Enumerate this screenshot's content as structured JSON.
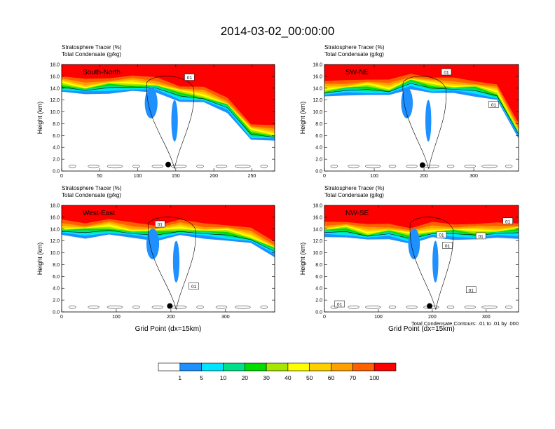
{
  "title": "2014-03-02_00:00:00",
  "contour_note": "Total Condensate Contours: .01 to .01 by .000",
  "colorbar": {
    "colors": [
      "#ffffff",
      "#1e90ff",
      "#00e5ff",
      "#00e08a",
      "#00dd00",
      "#a6e600",
      "#ffff00",
      "#ffd000",
      "#ffa000",
      "#ff6000",
      "#ff0000"
    ],
    "labels": [
      "1",
      "5",
      "10",
      "20",
      "30",
      "40",
      "50",
      "60",
      "70",
      "100"
    ]
  },
  "chart_data": [
    {
      "type": "heatmap",
      "panel_label": "South-North",
      "header": [
        "Stratosphere Tracer   (%)",
        "Total Condensate   (g/kg)"
      ],
      "ylabel": "Height (km)",
      "xlabel": "",
      "xlim": [
        0,
        280
      ],
      "ylim": [
        0,
        18
      ],
      "xticks": [
        0,
        50,
        100,
        150,
        200,
        250
      ],
      "yticks": [
        "0.0",
        "2.0",
        "4.0",
        "6.0",
        "8.0",
        "10.0",
        "12.0",
        "14.0",
        "16.0",
        "18.0"
      ],
      "tropopause_km": [
        16.0,
        15.4,
        15.9,
        16.0,
        15.8,
        14.5,
        14.0,
        12.5,
        8.0,
        7.5
      ],
      "contour_labels": [
        {
          "text": "01",
          "x": 168,
          "y": 15.8
        }
      ],
      "marker": {
        "x": 140,
        "y": 1.1
      }
    },
    {
      "type": "heatmap",
      "panel_label": "SW-NE",
      "header": [
        "Stratosphere Tracer   (%)",
        "Total Condensate   (g/kg)"
      ],
      "ylabel": "Height (km)",
      "xlabel": "",
      "xlim": [
        0,
        390
      ],
      "ylim": [
        0,
        18
      ],
      "xticks": [
        0,
        100,
        200,
        300
      ],
      "yticks": [
        "0.0",
        "2.0",
        "4.0",
        "6.0",
        "8.0",
        "10.0",
        "12.0",
        "14.0",
        "16.0",
        "18.0"
      ],
      "tropopause_km": [
        15.0,
        15.4,
        15.6,
        15.2,
        16.6,
        15.8,
        15.6,
        15.4,
        14.5,
        8.0
      ],
      "contour_labels": [
        {
          "text": "01",
          "x": 245,
          "y": 16.7
        },
        {
          "text": "01",
          "x": 340,
          "y": 11.2
        }
      ],
      "marker": {
        "x": 197,
        "y": 1.0
      }
    },
    {
      "type": "heatmap",
      "panel_label": "West-East",
      "header": [
        "Stratosphere Tracer   (%)",
        "Total Condensate   (g/kg)"
      ],
      "ylabel": "Height (km)",
      "xlabel": "Grid Point (dx=15km)",
      "xlim": [
        0,
        390
      ],
      "ylim": [
        0,
        18
      ],
      "xticks": [
        0,
        100,
        200,
        300
      ],
      "yticks": [
        "0.0",
        "2.0",
        "4.0",
        "6.0",
        "8.0",
        "10.0",
        "12.0",
        "14.0",
        "16.0",
        "18.0"
      ],
      "tropopause_km": [
        15.4,
        15.2,
        15.6,
        15.0,
        14.8,
        15.4,
        15.0,
        14.8,
        14.0,
        12.0
      ],
      "contour_labels": [
        {
          "text": "01",
          "x": 180,
          "y": 14.8
        },
        {
          "text": "01",
          "x": 242,
          "y": 4.3
        }
      ],
      "marker": {
        "x": 198,
        "y": 1.0
      }
    },
    {
      "type": "heatmap",
      "panel_label": "NW-SE",
      "header": [
        "Stratosphere Tracer   (%)",
        "Total Condensate   (g/kg)"
      ],
      "ylabel": "Height (km)",
      "xlabel": "Grid Point (dx=15km)",
      "xlim": [
        0,
        360
      ],
      "ylim": [
        0,
        18
      ],
      "xticks": [
        0,
        100,
        200,
        300
      ],
      "yticks": [
        "0.0",
        "2.0",
        "4.0",
        "6.0",
        "8.0",
        "10.0",
        "12.0",
        "14.0",
        "16.0",
        "18.0"
      ],
      "tropopause_km": [
        15.2,
        15.4,
        14.6,
        15.0,
        14.2,
        15.0,
        15.0,
        14.8,
        15.0,
        15.2
      ],
      "contour_labels": [
        {
          "text": "01",
          "x": 217,
          "y": 13.0
        },
        {
          "text": "01",
          "x": 228,
          "y": 11.2
        },
        {
          "text": "01",
          "x": 290,
          "y": 12.8
        },
        {
          "text": "01",
          "x": 340,
          "y": 15.3
        },
        {
          "text": "01",
          "x": 272,
          "y": 3.7
        },
        {
          "text": "01",
          "x": 28,
          "y": 1.3
        }
      ],
      "marker": {
        "x": 195,
        "y": 1.0
      }
    }
  ]
}
